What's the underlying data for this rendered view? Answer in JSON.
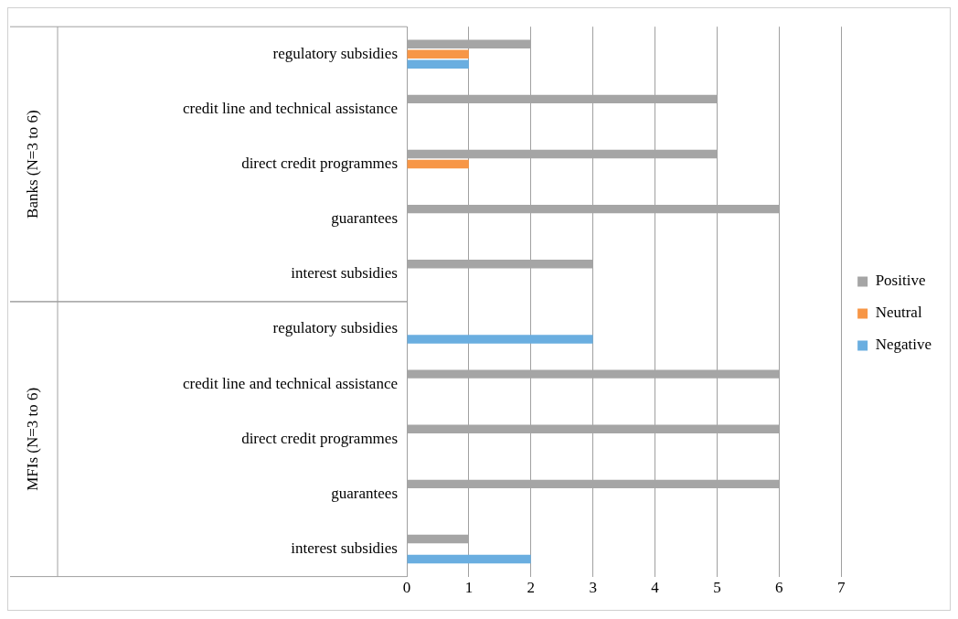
{
  "chart_data": {
    "type": "bar",
    "orientation": "horizontal",
    "categories": [
      "regulatory subsidies",
      "credit line and technical assistance",
      "direct credit programmes",
      "guarantees",
      "interest subsidies",
      "regulatory subsidies",
      "credit line and technical assistance",
      "direct credit programmes",
      "guarantees",
      "interest subsidies"
    ],
    "series": [
      {
        "name": "Positive",
        "color": "#a5a5a5",
        "values": [
          2,
          5,
          5,
          6,
          3,
          null,
          6,
          6,
          6,
          1
        ]
      },
      {
        "name": "Neutral",
        "color": "#f79646",
        "values": [
          1,
          null,
          1,
          null,
          null,
          null,
          null,
          null,
          null,
          null
        ]
      },
      {
        "name": "Negative",
        "color": "#6aaee0",
        "values": [
          1,
          null,
          null,
          null,
          null,
          3,
          null,
          null,
          null,
          2
        ]
      }
    ],
    "xlim": [
      0,
      7
    ],
    "xticks": [
      0,
      1,
      2,
      3,
      4,
      5,
      6,
      7
    ],
    "grid": "x",
    "legend": "right",
    "annotations": [
      "Banks (N=3 to 6)",
      "MFIs (N=3 to 6)"
    ]
  }
}
